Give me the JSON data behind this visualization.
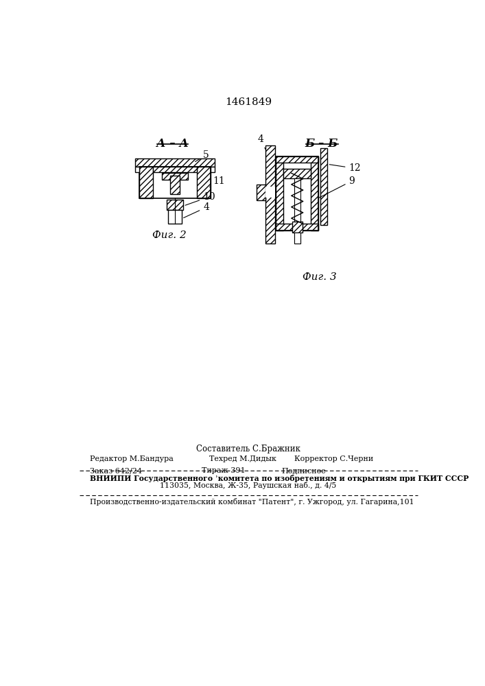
{
  "patent_number": "1461849",
  "bg_color": "#ffffff",
  "fig2_label": "А – А",
  "fig2_caption": "Фиг. 2",
  "fig3_label": "Б – Б",
  "fig3_caption": "Фиг. 3",
  "line_color": "#000000",
  "hatch_color": "#000000",
  "face_color": "#ffffff",
  "footer": {
    "sostavitel": "Составитель С.Бражник",
    "row1_col1": "Редактор М.Бандура",
    "row1_col2": "Техред М.Дидык",
    "row1_col3": "Корректор С.Черни",
    "row2_col1": "Заказ 642/24",
    "row2_col2": "Тираж 391",
    "row2_col3": "Подписное",
    "vniip1": "ВНИИПИ Государственного ’комитета по изобретениям и открытиям при ГКИТ СССР",
    "vniip2": "113035, Москва, Ж-35, Раушская наб., д. 4/5",
    "kombinat": "Производственно-издательский комбинат \"Патент\", г. Ужгород, ул. Гагарина,101"
  }
}
